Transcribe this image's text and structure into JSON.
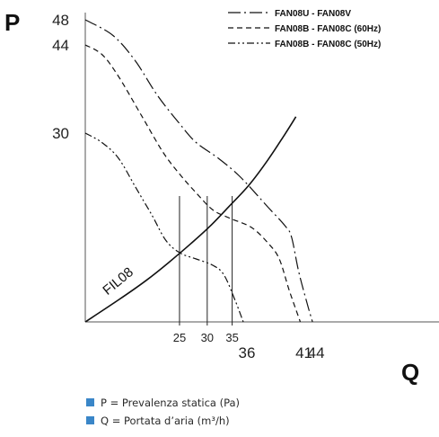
{
  "chart_data": {
    "type": "line",
    "ylabel": "P",
    "xlabel": "Q",
    "y_tick_labels": [
      "48",
      "44",
      "30"
    ],
    "x_tick_labels_upper": [
      "25",
      "30",
      "35"
    ],
    "x_tick_labels_lower": [
      "36",
      "41",
      "44"
    ],
    "xlim": [
      0,
      46
    ],
    "ylim": [
      0,
      50
    ],
    "series": [
      {
        "name": "FAN08U - FAN08V",
        "dash": "longdashdot",
        "points": [
          [
            0,
            48
          ],
          [
            5,
            45.5
          ],
          [
            9,
            41.5
          ],
          [
            13,
            36
          ],
          [
            17,
            31.5
          ],
          [
            20,
            28.5
          ],
          [
            24,
            26
          ],
          [
            28,
            23
          ],
          [
            33,
            18.2
          ],
          [
            36,
            15.3
          ],
          [
            37.2,
            13.5
          ],
          [
            38.5,
            8
          ],
          [
            40,
            3
          ],
          [
            41,
            0
          ]
        ]
      },
      {
        "name": "FAN08B - FAN08C (60Hz)",
        "dash": "dashed",
        "points": [
          [
            0,
            44
          ],
          [
            3,
            42.5
          ],
          [
            6,
            39
          ],
          [
            10,
            33
          ],
          [
            14,
            27
          ],
          [
            17,
            23.5
          ],
          [
            20,
            20.5
          ],
          [
            23,
            17.8
          ],
          [
            26,
            16.5
          ],
          [
            30,
            15
          ],
          [
            33,
            12.5
          ],
          [
            35,
            10
          ],
          [
            36.8,
            5
          ],
          [
            38.8,
            0
          ]
        ]
      },
      {
        "name": "FAN08B - FAN08C (50Hz)",
        "dash": "dashdotdot",
        "points": [
          [
            0,
            30
          ],
          [
            3,
            28.5
          ],
          [
            6,
            26
          ],
          [
            9,
            21.5
          ],
          [
            12,
            17
          ],
          [
            14.5,
            13
          ],
          [
            17,
            11
          ],
          [
            20,
            10
          ],
          [
            23,
            9
          ],
          [
            25,
            7.5
          ],
          [
            27,
            3.5
          ],
          [
            28.5,
            0
          ]
        ]
      }
    ],
    "filter_curve": {
      "label": "FIL08",
      "points": [
        [
          0,
          0
        ],
        [
          6,
          3.5
        ],
        [
          11,
          6.6
        ],
        [
          15,
          9.4
        ],
        [
          19,
          12.4
        ],
        [
          22.5,
          15.2
        ],
        [
          26,
          18.4
        ],
        [
          29.5,
          21.7
        ],
        [
          33,
          25.8
        ],
        [
          36,
          29.8
        ],
        [
          38,
          32.6
        ]
      ]
    },
    "reference_lines": [
      17,
      22,
      26.5
    ],
    "grid": false,
    "legend_position": "top-right"
  },
  "notes": {
    "accent_color": "#3a86c8",
    "items": [
      "P = Prevalenza statica (Pa)",
      "Q = Portata d’aria (m³/h)"
    ]
  }
}
